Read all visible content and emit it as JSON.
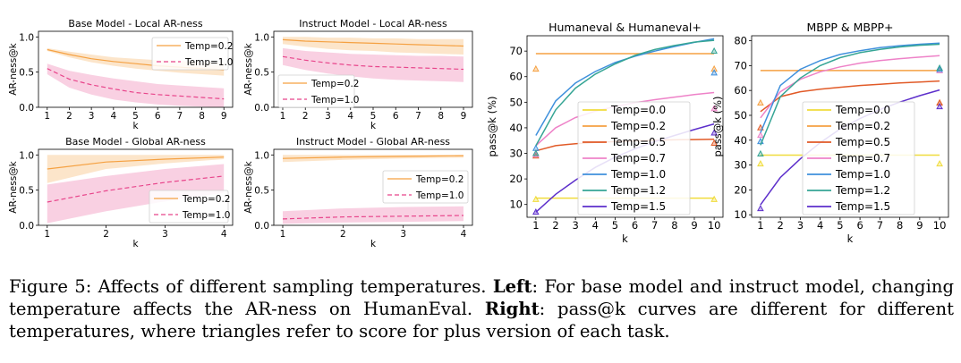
{
  "chart_data": [
    {
      "type": "line",
      "title": "Base Model - Local AR-ness",
      "xlabel": "k",
      "ylabel": "AR-ness@k",
      "x": [
        1,
        2,
        3,
        4,
        5,
        6,
        7,
        8,
        9
      ],
      "xticks": [
        1,
        2,
        3,
        4,
        5,
        6,
        7,
        8,
        9
      ],
      "ylim": [
        0,
        1.08
      ],
      "yticks": [
        0.0,
        0.5,
        1.0
      ],
      "ytick_labels": [
        "0.0",
        "0.5",
        "1.0"
      ],
      "legend_position": "upper right",
      "series": [
        {
          "name": "Temp=0.2",
          "color": "#f5a142",
          "style": "solid",
          "values": [
            0.82,
            0.75,
            0.69,
            0.65,
            0.62,
            0.59,
            0.57,
            0.55,
            0.53
          ],
          "band_lower": [
            0.8,
            0.71,
            0.64,
            0.59,
            0.55,
            0.52,
            0.49,
            0.47,
            0.45
          ],
          "band_upper": [
            0.84,
            0.79,
            0.75,
            0.71,
            0.69,
            0.67,
            0.66,
            0.64,
            0.63
          ]
        },
        {
          "name": "Temp=1.0",
          "color": "#e8458b",
          "style": "dashed",
          "values": [
            0.55,
            0.4,
            0.32,
            0.26,
            0.21,
            0.18,
            0.16,
            0.14,
            0.12
          ],
          "band_lower": [
            0.47,
            0.28,
            0.18,
            0.11,
            0.07,
            0.04,
            0.02,
            0.01,
            0.0
          ],
          "band_upper": [
            0.62,
            0.52,
            0.46,
            0.41,
            0.37,
            0.33,
            0.31,
            0.29,
            0.27
          ]
        }
      ]
    },
    {
      "type": "line",
      "title": "Instruct Model - Local AR-ness",
      "xlabel": "k",
      "ylabel": "AR-ness@k",
      "x": [
        1,
        2,
        3,
        4,
        5,
        6,
        7,
        8,
        9
      ],
      "xticks": [
        1,
        2,
        3,
        4,
        5,
        6,
        7,
        8,
        9
      ],
      "ylim": [
        0,
        1.08
      ],
      "yticks": [
        0.0,
        0.5,
        1.0
      ],
      "ytick_labels": [
        "0.0",
        "0.5",
        "1.0"
      ],
      "legend_position": "lower left",
      "series": [
        {
          "name": "Temp=0.2",
          "color": "#f5a142",
          "style": "solid",
          "values": [
            0.96,
            0.94,
            0.93,
            0.92,
            0.91,
            0.9,
            0.89,
            0.88,
            0.87
          ],
          "band_lower": [
            0.9,
            0.86,
            0.83,
            0.81,
            0.8,
            0.78,
            0.77,
            0.76,
            0.75
          ],
          "band_upper": [
            1.0,
            1.0,
            0.99,
            0.99,
            0.98,
            0.98,
            0.97,
            0.97,
            0.97
          ]
        },
        {
          "name": "Temp=1.0",
          "color": "#e8458b",
          "style": "dashed",
          "values": [
            0.72,
            0.67,
            0.63,
            0.6,
            0.58,
            0.57,
            0.56,
            0.55,
            0.54
          ],
          "band_lower": [
            0.6,
            0.53,
            0.48,
            0.44,
            0.41,
            0.39,
            0.38,
            0.37,
            0.36
          ],
          "band_upper": [
            0.84,
            0.8,
            0.78,
            0.76,
            0.75,
            0.74,
            0.73,
            0.73,
            0.72
          ]
        }
      ]
    },
    {
      "type": "line",
      "title": "Base Model - Global AR-ness",
      "xlabel": "k",
      "ylabel": "AR-ness@k",
      "x": [
        1,
        2,
        3,
        4
      ],
      "xticks": [
        1,
        2,
        3,
        4
      ],
      "ylim": [
        0,
        1.08
      ],
      "yticks": [
        0.0,
        0.5,
        1.0
      ],
      "ytick_labels": [
        "0.0",
        "0.5",
        "1.0"
      ],
      "legend_position": "lower right",
      "series": [
        {
          "name": "Temp=0.2",
          "color": "#f5a142",
          "style": "solid",
          "values": [
            0.8,
            0.9,
            0.94,
            0.97
          ],
          "band_lower": [
            0.6,
            0.8,
            0.88,
            0.94
          ],
          "band_upper": [
            1.0,
            1.0,
            1.0,
            1.0
          ]
        },
        {
          "name": "Temp=1.0",
          "color": "#e8458b",
          "style": "dashed",
          "values": [
            0.33,
            0.49,
            0.61,
            0.7
          ],
          "band_lower": [
            0.03,
            0.2,
            0.34,
            0.46
          ],
          "band_upper": [
            0.58,
            0.7,
            0.8,
            0.87
          ]
        }
      ]
    },
    {
      "type": "line",
      "title": "Instruct Model - Global AR-ness",
      "xlabel": "k",
      "ylabel": "AR-ness@k",
      "x": [
        1,
        2,
        3,
        4
      ],
      "xticks": [
        1,
        2,
        3,
        4
      ],
      "ylim": [
        0,
        1.08
      ],
      "yticks": [
        0.0,
        0.5,
        1.0
      ],
      "ytick_labels": [
        "0.0",
        "0.5",
        "1.0"
      ],
      "legend_position": "center right",
      "series": [
        {
          "name": "Temp=0.2",
          "color": "#f5a142",
          "style": "solid",
          "values": [
            0.95,
            0.97,
            0.98,
            0.99
          ],
          "band_lower": [
            0.9,
            0.93,
            0.95,
            0.96
          ],
          "band_upper": [
            1.0,
            1.0,
            1.0,
            1.0
          ]
        },
        {
          "name": "Temp=1.0",
          "color": "#e8458b",
          "style": "dashed",
          "values": [
            0.09,
            0.12,
            0.13,
            0.14
          ],
          "band_lower": [
            0.02,
            0.04,
            0.05,
            0.06
          ],
          "band_upper": [
            0.2,
            0.24,
            0.26,
            0.27
          ]
        }
      ]
    },
    {
      "type": "line",
      "title": "Humaneval & Humaneval+",
      "xlabel": "k",
      "ylabel": "pass@k (%)",
      "x": [
        1,
        2,
        3,
        4,
        5,
        6,
        7,
        8,
        9,
        10
      ],
      "xticks": [
        1,
        2,
        3,
        4,
        5,
        6,
        7,
        8,
        9,
        10
      ],
      "ylim": [
        5,
        76
      ],
      "yticks": [
        10,
        20,
        30,
        40,
        50,
        60,
        70
      ],
      "legend_position": "lower left",
      "markers": "triangles at k=1 and k=10 show plus-version scores",
      "series": [
        {
          "name": "Temp=0.0",
          "color": "#f0dc3c",
          "values": [
            12.5,
            12.5,
            12.5,
            12.5,
            12.5,
            12.5,
            12.5,
            12.5,
            12.5,
            12.5
          ],
          "plus": [
            12.0,
            12.0
          ]
        },
        {
          "name": "Temp=0.2",
          "color": "#f5a142",
          "values": [
            69,
            69,
            69,
            69,
            69,
            69,
            69,
            69,
            69,
            69
          ],
          "plus": [
            63,
            63
          ]
        },
        {
          "name": "Temp=0.5",
          "color": "#e15a27",
          "values": [
            31,
            33,
            33.8,
            34.3,
            34.6,
            34.9,
            35.1,
            35.3,
            35.4,
            35.5
          ],
          "plus": [
            29,
            34
          ]
        },
        {
          "name": "Temp=0.7",
          "color": "#ee82c8",
          "values": [
            33,
            40,
            44,
            46.5,
            48.3,
            49.8,
            51,
            52,
            53,
            53.8
          ],
          "plus": [
            29.5,
            47.5
          ]
        },
        {
          "name": "Temp=1.0",
          "color": "#3f90dc",
          "values": [
            37,
            50.5,
            57.5,
            62,
            65.5,
            68,
            70,
            71.8,
            73.4,
            74.8
          ],
          "plus": [
            32,
            61.5
          ]
        },
        {
          "name": "Temp=1.2",
          "color": "#36a595",
          "values": [
            33,
            47,
            55.5,
            61,
            65,
            68.3,
            70.6,
            72.2,
            73.5,
            74.2
          ],
          "plus": [
            30,
            70
          ]
        },
        {
          "name": "Temp=1.5",
          "color": "#5d2fcb",
          "values": [
            7,
            14,
            19.5,
            24.5,
            28.5,
            31.8,
            34.6,
            37,
            39.3,
            41.5
          ],
          "plus": [
            7,
            38
          ]
        }
      ]
    },
    {
      "type": "line",
      "title": "MBPP & MBPP+",
      "xlabel": "k",
      "ylabel": "pass@k (%)",
      "x": [
        1,
        2,
        3,
        4,
        5,
        6,
        7,
        8,
        9,
        10
      ],
      "xticks": [
        1,
        2,
        3,
        4,
        5,
        6,
        7,
        8,
        9,
        10
      ],
      "ylim": [
        9,
        82
      ],
      "yticks": [
        10,
        20,
        30,
        40,
        50,
        60,
        70,
        80
      ],
      "legend_position": "lower left",
      "markers": "triangles at k=1 and k=10 show plus-version scores",
      "series": [
        {
          "name": "Temp=0.0",
          "color": "#f0dc3c",
          "values": [
            34,
            34,
            34,
            34,
            34,
            34,
            34,
            34,
            34,
            34
          ],
          "plus": [
            30.5,
            30.5
          ]
        },
        {
          "name": "Temp=0.2",
          "color": "#f5a142",
          "values": [
            68,
            68,
            68,
            68,
            68,
            68,
            68,
            68,
            68,
            68
          ],
          "plus": [
            55,
            55
          ]
        },
        {
          "name": "Temp=0.5",
          "color": "#e15a27",
          "values": [
            51.5,
            57.5,
            59.5,
            60.5,
            61.3,
            62,
            62.5,
            63,
            63.4,
            63.8
          ],
          "plus": [
            45,
            55
          ]
        },
        {
          "name": "Temp=0.7",
          "color": "#ee82c8",
          "values": [
            49,
            59.5,
            64.5,
            67.5,
            69.5,
            71,
            72,
            72.8,
            73.4,
            74
          ],
          "plus": [
            42,
            68
          ]
        },
        {
          "name": "Temp=1.0",
          "color": "#3f90dc",
          "values": [
            43,
            62,
            68.5,
            72,
            74.5,
            76,
            77.2,
            78,
            78.6,
            79
          ],
          "plus": [
            39.5,
            68.5
          ]
        },
        {
          "name": "Temp=1.2",
          "color": "#36a595",
          "values": [
            38,
            57.5,
            65,
            70,
            73.2,
            75.2,
            76.5,
            77.5,
            78.2,
            78.6
          ],
          "plus": [
            34.5,
            69
          ]
        },
        {
          "name": "Temp=1.5",
          "color": "#5d2fcb",
          "values": [
            14,
            25,
            32.5,
            39,
            44.5,
            48.7,
            52.3,
            55.3,
            57.9,
            60.2
          ],
          "plus": [
            12.5,
            53.5
          ]
        }
      ]
    }
  ],
  "caption": {
    "figure_label": "Figure 5:",
    "part1": " Affects of different sampling temperatures. ",
    "left_label": "Left",
    "part2": ": For base model and instruct model, changing temperature affects the AR-ness on HumanEval. ",
    "right_label": "Right",
    "part3": ": pass@k curves are different for different temperatures, where triangles refer to score for plus version of each task."
  }
}
